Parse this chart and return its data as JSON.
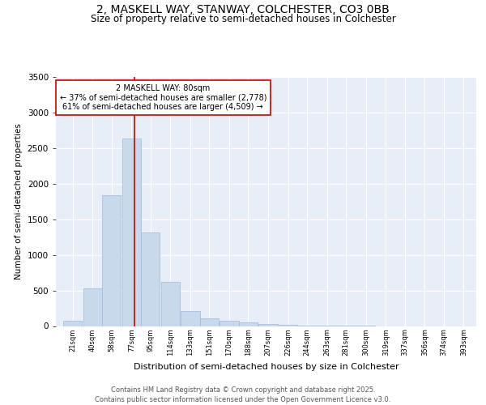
{
  "title_line1": "2, MASKELL WAY, STANWAY, COLCHESTER, CO3 0BB",
  "title_line2": "Size of property relative to semi-detached houses in Colchester",
  "xlabel": "Distribution of semi-detached houses by size in Colchester",
  "ylabel": "Number of semi-detached properties",
  "footnote1": "Contains HM Land Registry data © Crown copyright and database right 2025.",
  "footnote2": "Contains public sector information licensed under the Open Government Licence v3.0.",
  "annotation_title": "2 MASKELL WAY: 80sqm",
  "annotation_line2": "← 37% of semi-detached houses are smaller (2,778)",
  "annotation_line3": "61% of semi-detached houses are larger (4,509) →",
  "bar_color": "#c9d9ed",
  "bar_edge_color": "#a0b8d8",
  "vline_color": "#cc0000",
  "vline_x": 80,
  "annotation_box_color": "#cc0000",
  "background_color": "#e8eef8",
  "categories": [
    21,
    40,
    58,
    77,
    95,
    114,
    133,
    151,
    170,
    188,
    207,
    226,
    244,
    263,
    281,
    300,
    319,
    337,
    356,
    374,
    393
  ],
  "bin_width": 18,
  "values": [
    70,
    530,
    1840,
    2640,
    1310,
    620,
    210,
    110,
    75,
    50,
    30,
    20,
    10,
    5,
    2,
    1,
    0,
    0,
    0,
    0,
    0
  ],
  "ylim": [
    0,
    3500
  ],
  "yticks": [
    0,
    500,
    1000,
    1500,
    2000,
    2500,
    3000,
    3500
  ],
  "xlim_left": 5,
  "xlim_right": 405
}
